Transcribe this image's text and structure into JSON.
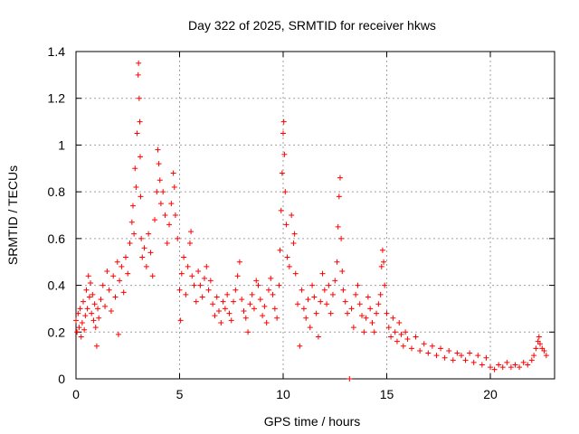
{
  "chart_data": {
    "type": "scatter",
    "title": "Day 322 of 2025, SRMTID for receiver hkws",
    "xlabel": "GPS time / hours",
    "ylabel": "SRMTID / TECUs",
    "xlim": [
      0,
      23.1
    ],
    "ylim": [
      0,
      1.4
    ],
    "xticks": [
      0,
      5,
      10,
      15,
      20
    ],
    "xtick_labels": [
      "0",
      "5",
      "10",
      "15",
      "20"
    ],
    "yticks": [
      0,
      0.2,
      0.4,
      0.6,
      0.8,
      1.0,
      1.2,
      1.4
    ],
    "ytick_labels": [
      "0",
      "0.2",
      "0.4",
      "0.6",
      "0.8",
      "1",
      "1.2",
      "1.4"
    ],
    "grid": true,
    "marker": "+",
    "color": "#ff0000",
    "series": [
      {
        "name": "SRMTID",
        "points": [
          [
            0.0,
            0.25
          ],
          [
            0.05,
            0.2
          ],
          [
            0.1,
            0.28
          ],
          [
            0.15,
            0.22
          ],
          [
            0.2,
            0.3
          ],
          [
            0.25,
            0.18
          ],
          [
            0.3,
            0.24
          ],
          [
            0.35,
            0.33
          ],
          [
            0.4,
            0.21
          ],
          [
            0.45,
            0.27
          ],
          [
            0.5,
            0.38
          ],
          [
            0.55,
            0.3
          ],
          [
            0.6,
            0.44
          ],
          [
            0.65,
            0.35
          ],
          [
            0.7,
            0.41
          ],
          [
            0.75,
            0.28
          ],
          [
            0.8,
            0.36
          ],
          [
            0.85,
            0.25
          ],
          [
            0.9,
            0.32
          ],
          [
            0.95,
            0.22
          ],
          [
            1.0,
            0.14
          ],
          [
            1.05,
            0.3
          ],
          [
            1.1,
            0.26
          ],
          [
            1.2,
            0.34
          ],
          [
            1.3,
            0.4
          ],
          [
            1.4,
            0.31
          ],
          [
            1.5,
            0.46
          ],
          [
            1.6,
            0.38
          ],
          [
            1.7,
            0.29
          ],
          [
            1.8,
            0.44
          ],
          [
            1.9,
            0.35
          ],
          [
            2.0,
            0.5
          ],
          [
            2.05,
            0.19
          ],
          [
            2.1,
            0.42
          ],
          [
            2.2,
            0.48
          ],
          [
            2.3,
            0.37
          ],
          [
            2.4,
            0.52
          ],
          [
            2.5,
            0.45
          ],
          [
            2.6,
            0.58
          ],
          [
            2.7,
            0.67
          ],
          [
            2.75,
            0.74
          ],
          [
            2.8,
            0.62
          ],
          [
            2.85,
            0.9
          ],
          [
            2.9,
            0.82
          ],
          [
            2.95,
            1.05
          ],
          [
            3.0,
            1.3
          ],
          [
            3.02,
            1.35
          ],
          [
            3.05,
            1.2
          ],
          [
            3.08,
            1.1
          ],
          [
            3.1,
            0.95
          ],
          [
            3.12,
            0.78
          ],
          [
            3.15,
            0.6
          ],
          [
            3.2,
            0.52
          ],
          [
            3.3,
            0.56
          ],
          [
            3.4,
            0.48
          ],
          [
            3.5,
            0.62
          ],
          [
            3.6,
            0.54
          ],
          [
            3.7,
            0.44
          ],
          [
            3.8,
            0.68
          ],
          [
            3.9,
            0.8
          ],
          [
            3.95,
            0.98
          ],
          [
            4.0,
            0.92
          ],
          [
            4.05,
            0.85
          ],
          [
            4.1,
            0.75
          ],
          [
            4.2,
            0.8
          ],
          [
            4.3,
            0.7
          ],
          [
            4.4,
            0.58
          ],
          [
            4.5,
            0.66
          ],
          [
            4.6,
            0.75
          ],
          [
            4.7,
            0.88
          ],
          [
            4.75,
            0.82
          ],
          [
            4.8,
            0.7
          ],
          [
            4.9,
            0.6
          ],
          [
            5.0,
            0.38
          ],
          [
            5.05,
            0.25
          ],
          [
            5.1,
            0.45
          ],
          [
            5.2,
            0.52
          ],
          [
            5.3,
            0.36
          ],
          [
            5.4,
            0.48
          ],
          [
            5.5,
            0.58
          ],
          [
            5.55,
            0.63
          ],
          [
            5.6,
            0.44
          ],
          [
            5.7,
            0.4
          ],
          [
            5.8,
            0.33
          ],
          [
            5.9,
            0.46
          ],
          [
            6.0,
            0.4
          ],
          [
            6.1,
            0.35
          ],
          [
            6.2,
            0.43
          ],
          [
            6.3,
            0.48
          ],
          [
            6.4,
            0.38
          ],
          [
            6.5,
            0.42
          ],
          [
            6.6,
            0.32
          ],
          [
            6.7,
            0.27
          ],
          [
            6.8,
            0.35
          ],
          [
            6.9,
            0.29
          ],
          [
            7.0,
            0.24
          ],
          [
            7.1,
            0.33
          ],
          [
            7.2,
            0.3
          ],
          [
            7.3,
            0.36
          ],
          [
            7.4,
            0.28
          ],
          [
            7.5,
            0.25
          ],
          [
            7.6,
            0.33
          ],
          [
            7.7,
            0.38
          ],
          [
            7.8,
            0.44
          ],
          [
            7.9,
            0.5
          ],
          [
            8.0,
            0.34
          ],
          [
            8.1,
            0.29
          ],
          [
            8.2,
            0.26
          ],
          [
            8.3,
            0.2
          ],
          [
            8.4,
            0.32
          ],
          [
            8.5,
            0.36
          ],
          [
            8.6,
            0.3
          ],
          [
            8.7,
            0.42
          ],
          [
            8.8,
            0.4
          ],
          [
            8.9,
            0.34
          ],
          [
            9.0,
            0.27
          ],
          [
            9.1,
            0.31
          ],
          [
            9.2,
            0.24
          ],
          [
            9.3,
            0.38
          ],
          [
            9.4,
            0.43
          ],
          [
            9.5,
            0.36
          ],
          [
            9.6,
            0.3
          ],
          [
            9.7,
            0.26
          ],
          [
            9.8,
            0.4
          ],
          [
            9.85,
            0.55
          ],
          [
            9.9,
            0.72
          ],
          [
            9.95,
            0.88
          ],
          [
            10.0,
            1.05
          ],
          [
            10.03,
            1.1
          ],
          [
            10.06,
            0.96
          ],
          [
            10.1,
            0.8
          ],
          [
            10.15,
            0.66
          ],
          [
            10.2,
            0.52
          ],
          [
            10.3,
            0.48
          ],
          [
            10.4,
            0.7
          ],
          [
            10.5,
            0.58
          ],
          [
            10.55,
            0.62
          ],
          [
            10.6,
            0.45
          ],
          [
            10.7,
            0.32
          ],
          [
            10.8,
            0.14
          ],
          [
            10.9,
            0.38
          ],
          [
            11.0,
            0.3
          ],
          [
            11.1,
            0.26
          ],
          [
            11.2,
            0.34
          ],
          [
            11.3,
            0.22
          ],
          [
            11.4,
            0.4
          ],
          [
            11.5,
            0.35
          ],
          [
            11.6,
            0.28
          ],
          [
            11.7,
            0.18
          ],
          [
            11.8,
            0.33
          ],
          [
            11.9,
            0.45
          ],
          [
            12.0,
            0.38
          ],
          [
            12.1,
            0.32
          ],
          [
            12.2,
            0.4
          ],
          [
            12.3,
            0.28
          ],
          [
            12.4,
            0.36
          ],
          [
            12.5,
            0.42
          ],
          [
            12.6,
            0.5
          ],
          [
            12.65,
            0.65
          ],
          [
            12.7,
            0.78
          ],
          [
            12.75,
            0.86
          ],
          [
            12.8,
            0.6
          ],
          [
            12.85,
            0.46
          ],
          [
            12.9,
            0.38
          ],
          [
            13.0,
            0.33
          ],
          [
            13.1,
            0.28
          ],
          [
            13.2,
            0.0
          ],
          [
            13.3,
            0.3
          ],
          [
            13.4,
            0.22
          ],
          [
            13.5,
            0.36
          ],
          [
            13.6,
            0.4
          ],
          [
            13.7,
            0.32
          ],
          [
            13.8,
            0.27
          ],
          [
            13.9,
            0.2
          ],
          [
            14.0,
            0.26
          ],
          [
            14.1,
            0.35
          ],
          [
            14.2,
            0.3
          ],
          [
            14.3,
            0.24
          ],
          [
            14.4,
            0.2
          ],
          [
            14.5,
            0.28
          ],
          [
            14.6,
            0.32
          ],
          [
            14.7,
            0.36
          ],
          [
            14.75,
            0.48
          ],
          [
            14.8,
            0.55
          ],
          [
            14.85,
            0.5
          ],
          [
            14.9,
            0.4
          ],
          [
            15.0,
            0.28
          ],
          [
            15.1,
            0.22
          ],
          [
            15.2,
            0.18
          ],
          [
            15.3,
            0.26
          ],
          [
            15.4,
            0.2
          ],
          [
            15.5,
            0.16
          ],
          [
            15.6,
            0.24
          ],
          [
            15.7,
            0.19
          ],
          [
            15.8,
            0.14
          ],
          [
            15.9,
            0.2
          ],
          [
            16.0,
            0.17
          ],
          [
            16.2,
            0.13
          ],
          [
            16.4,
            0.18
          ],
          [
            16.6,
            0.12
          ],
          [
            16.8,
            0.15
          ],
          [
            17.0,
            0.11
          ],
          [
            17.2,
            0.14
          ],
          [
            17.4,
            0.1
          ],
          [
            17.6,
            0.13
          ],
          [
            17.8,
            0.09
          ],
          [
            18.0,
            0.12
          ],
          [
            18.2,
            0.08
          ],
          [
            18.4,
            0.11
          ],
          [
            18.6,
            0.1
          ],
          [
            18.8,
            0.08
          ],
          [
            19.0,
            0.11
          ],
          [
            19.2,
            0.07
          ],
          [
            19.4,
            0.1
          ],
          [
            19.6,
            0.06
          ],
          [
            19.8,
            0.09
          ],
          [
            20.0,
            0.05
          ],
          [
            20.2,
            0.04
          ],
          [
            20.4,
            0.06
          ],
          [
            20.6,
            0.05
          ],
          [
            20.8,
            0.07
          ],
          [
            21.0,
            0.05
          ],
          [
            21.2,
            0.06
          ],
          [
            21.4,
            0.05
          ],
          [
            21.6,
            0.07
          ],
          [
            21.8,
            0.06
          ],
          [
            22.0,
            0.08
          ],
          [
            22.1,
            0.1
          ],
          [
            22.2,
            0.13
          ],
          [
            22.3,
            0.16
          ],
          [
            22.35,
            0.18
          ],
          [
            22.4,
            0.15
          ],
          [
            22.5,
            0.13
          ],
          [
            22.6,
            0.12
          ],
          [
            22.7,
            0.1
          ]
        ]
      }
    ]
  }
}
